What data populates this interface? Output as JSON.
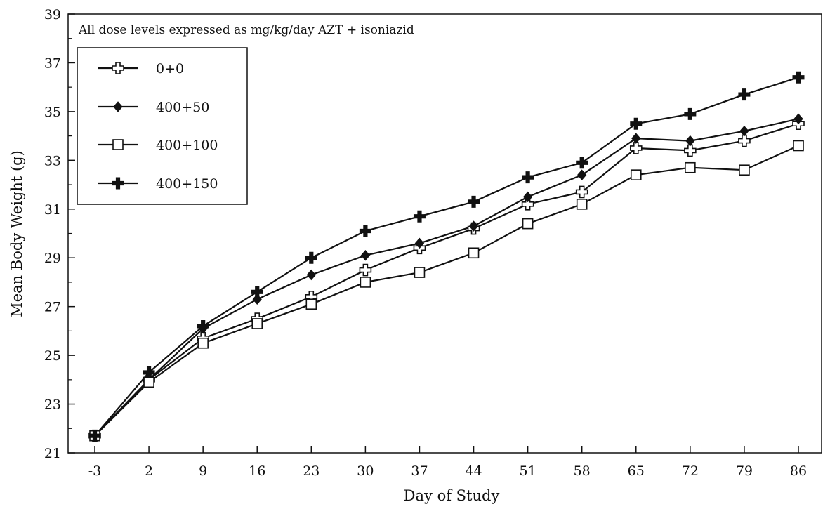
{
  "chart_data": {
    "type": "line",
    "title": "",
    "annotation": "All dose levels expressed as mg/kg/day AZT + isoniazid",
    "xlabel": "Day of Study",
    "ylabel": "Mean Body Weight (g)",
    "categories": [
      "-3",
      "2",
      "9",
      "16",
      "23",
      "30",
      "37",
      "44",
      "51",
      "58",
      "65",
      "72",
      "79",
      "86"
    ],
    "x": [
      -3,
      2,
      9,
      16,
      23,
      30,
      37,
      44,
      51,
      58,
      65,
      72,
      79,
      86
    ],
    "ylim": [
      21,
      39
    ],
    "yticks": [
      21,
      23,
      25,
      27,
      29,
      31,
      33,
      35,
      37,
      39
    ],
    "grid": false,
    "legend_position": "top-left",
    "series": [
      {
        "name": "0+0",
        "marker": "open-cross",
        "values": [
          21.7,
          24.0,
          25.7,
          26.5,
          27.4,
          28.5,
          29.4,
          30.2,
          31.2,
          31.7,
          33.5,
          33.4,
          33.8,
          34.5
        ]
      },
      {
        "name": "400+50",
        "marker": "filled-diamond",
        "values": [
          21.7,
          24.0,
          26.1,
          27.3,
          28.3,
          29.1,
          29.6,
          30.3,
          31.5,
          32.4,
          33.9,
          33.8,
          34.2,
          34.7
        ]
      },
      {
        "name": "400+100",
        "marker": "open-square",
        "values": [
          21.7,
          23.9,
          25.5,
          26.3,
          27.1,
          28.0,
          28.4,
          29.2,
          30.4,
          31.2,
          32.4,
          32.7,
          32.6,
          33.6
        ]
      },
      {
        "name": "400+150",
        "marker": "filled-cross",
        "values": [
          21.7,
          24.3,
          26.2,
          27.6,
          29.0,
          30.1,
          30.7,
          31.3,
          32.3,
          32.9,
          34.5,
          34.9,
          35.7,
          36.4
        ]
      }
    ]
  }
}
